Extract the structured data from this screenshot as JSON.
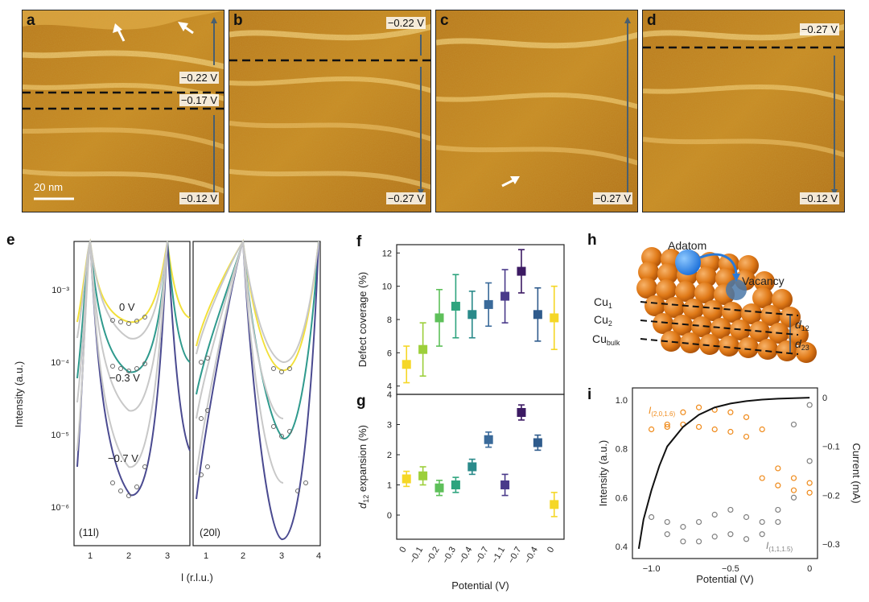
{
  "stm_panels": [
    {
      "letter": "a",
      "labels": [
        "−0.22 V",
        "−0.17 V",
        "−0.12 V"
      ],
      "scale_bar": "20 nm"
    },
    {
      "letter": "b",
      "labels": [
        "−0.22 V",
        "−0.27 V"
      ]
    },
    {
      "letter": "c",
      "labels": [
        "−0.27 V"
      ]
    },
    {
      "letter": "d",
      "labels": [
        "−0.27 V",
        "−0.12 V"
      ]
    }
  ],
  "panel_e": {
    "letter": "e",
    "ylabel": "Intensity (a.u.)",
    "xlabel": "l (r.l.u.)",
    "yticks": [
      "10⁻³",
      "10⁻⁴",
      "10⁻⁵",
      "10⁻⁶"
    ],
    "left_label": "(11l)",
    "right_label": "(20l)",
    "left_xticks": [
      "1",
      "2",
      "3"
    ],
    "right_xticks": [
      "1",
      "2",
      "3",
      "4"
    ],
    "curve_labels": [
      "0 V",
      "−0.3 V",
      "−0.7 V"
    ],
    "colors": [
      "#f2e03a",
      "#2f9a8d",
      "#4a4a90"
    ]
  },
  "chart_data": [
    {
      "id": "f",
      "type": "scatter",
      "title": "",
      "xlabel": "Potential (V)",
      "ylabel": "Defect coverage (%)",
      "ylim": [
        3.5,
        12.5
      ],
      "yticks": [
        4,
        6,
        8,
        10,
        12
      ],
      "categories": [
        "0",
        "−0.1",
        "−0.2",
        "−0.3",
        "−0.4",
        "−0.7",
        "−1.1",
        "−0.7",
        "−0.4",
        "0"
      ],
      "values": [
        5.3,
        6.2,
        8.1,
        8.8,
        8.3,
        8.9,
        9.4,
        10.9,
        8.3,
        8.1
      ],
      "errors": [
        1.1,
        1.6,
        1.7,
        1.9,
        1.4,
        1.3,
        1.6,
        1.3,
        1.6,
        1.9
      ],
      "colors": [
        "#f5d726",
        "#9ccf3a",
        "#5ec05a",
        "#2ea47e",
        "#2a8a8a",
        "#3a6a9a",
        "#4a3a8a",
        "#3c1a63",
        "#2f5b8c",
        "#f5d726"
      ]
    },
    {
      "id": "g",
      "type": "scatter",
      "title": "",
      "xlabel": "Potential (V)",
      "ylabel": "d12 expansion (%)",
      "ylim": [
        -0.8,
        4
      ],
      "yticks": [
        0,
        1,
        2,
        3,
        4
      ],
      "categories": [
        "0",
        "−0.1",
        "−0.2",
        "−0.3",
        "−0.4",
        "−0.7",
        "−1.1",
        "−0.7",
        "−0.4",
        "0"
      ],
      "values": [
        1.2,
        1.3,
        0.9,
        1.0,
        1.6,
        2.5,
        1.0,
        3.4,
        2.4,
        0.35
      ],
      "errors": [
        0.25,
        0.3,
        0.25,
        0.25,
        0.25,
        0.25,
        0.35,
        0.25,
        0.25,
        0.4
      ],
      "colors": [
        "#f5d726",
        "#9ccf3a",
        "#5ec05a",
        "#2ea47e",
        "#2a8a8a",
        "#3a6a9a",
        "#4a3a8a",
        "#3c1a63",
        "#2f5b8c",
        "#f5d726"
      ]
    },
    {
      "id": "i",
      "type": "line",
      "title": "",
      "xlabel": "Potential (V)",
      "ylabel": "Intensity (a.u.)",
      "y2label": "Current (mA)",
      "xlim": [
        -1.12,
        0.05
      ],
      "ylim": [
        0.35,
        1.05
      ],
      "y2lim": [
        -0.33,
        0.02
      ],
      "xticks": [
        -1.0,
        -0.5,
        0
      ],
      "yticks": [
        0.4,
        0.6,
        0.8,
        1.0
      ],
      "y2ticks": [
        0,
        -0.1,
        -0.2,
        -0.3
      ],
      "series": [
        {
          "name": "I(2,0,1.6)",
          "color": "#ef8a1a",
          "x": [
            0.0,
            -0.1,
            -0.2,
            -0.3,
            -0.4,
            -0.5,
            -0.6,
            -0.7,
            -0.8,
            -0.9,
            -1.0,
            -0.9,
            -0.8,
            -0.7,
            -0.6,
            -0.5,
            -0.4,
            -0.3,
            -0.2,
            -0.1,
            0.0
          ],
          "y": [
            0.62,
            0.63,
            0.65,
            0.68,
            0.85,
            0.87,
            0.88,
            0.89,
            0.9,
            0.89,
            0.88,
            0.9,
            0.95,
            0.97,
            0.96,
            0.95,
            0.93,
            0.88,
            0.72,
            0.68,
            0.66
          ]
        },
        {
          "name": "I(1,1,1.5)",
          "color": "#808080",
          "x": [
            0.0,
            -0.1,
            -0.2,
            -0.3,
            -0.4,
            -0.5,
            -0.6,
            -0.7,
            -0.8,
            -0.9,
            -1.0,
            -0.9,
            -0.8,
            -0.7,
            -0.6,
            -0.5,
            -0.4,
            -0.3,
            -0.2,
            -0.1,
            0.0
          ],
          "y": [
            0.98,
            0.9,
            0.55,
            0.5,
            0.52,
            0.55,
            0.53,
            0.5,
            0.48,
            0.5,
            0.52,
            0.45,
            0.42,
            0.42,
            0.44,
            0.45,
            0.43,
            0.45,
            0.5,
            0.6,
            0.75
          ]
        },
        {
          "name": "Current",
          "color": "#111111",
          "x": [
            -1.08,
            -1.05,
            -1.0,
            -0.95,
            -0.9,
            -0.8,
            -0.7,
            -0.6,
            -0.5,
            -0.4,
            -0.3,
            -0.2,
            -0.1,
            0.0
          ],
          "y": [
            -0.31,
            -0.25,
            -0.19,
            -0.14,
            -0.1,
            -0.06,
            -0.035,
            -0.02,
            -0.012,
            -0.007,
            -0.004,
            -0.002,
            -0.001,
            0.0
          ]
        }
      ],
      "labels": [
        "I(2,0,1.6)",
        "I(1,1,1.5)"
      ]
    }
  ],
  "panel_h": {
    "letter": "h",
    "adatom": "Adatom",
    "vacancy": "Vacancy",
    "layers": [
      "Cu1",
      "Cu2",
      "Cubulk"
    ],
    "spacings": [
      "d12",
      "d23"
    ]
  },
  "letters": {
    "f": "f",
    "g": "g",
    "i": "i"
  }
}
